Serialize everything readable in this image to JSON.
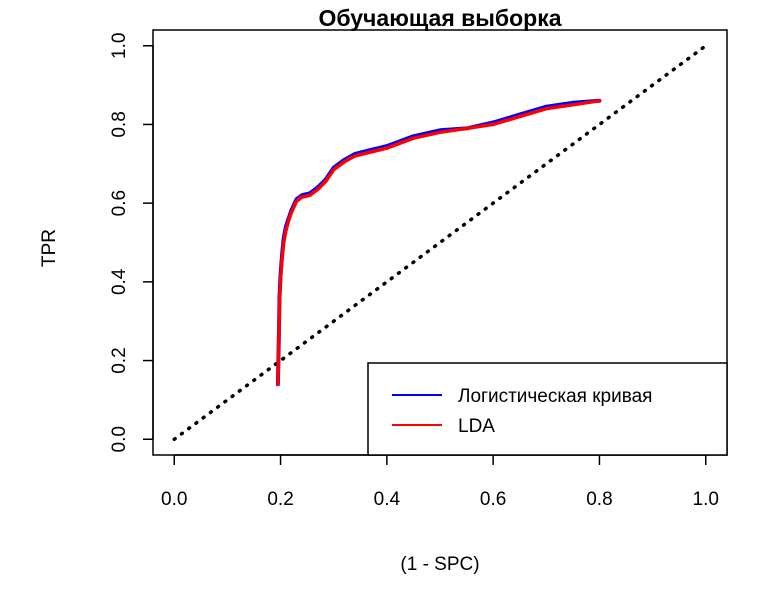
{
  "chart_data": {
    "type": "line",
    "title": "Обучающая выборка",
    "xlabel": "(1 - SPC)",
    "ylabel": "TPR",
    "xlim": [
      -0.04,
      1.04
    ],
    "ylim": [
      -0.04,
      1.04
    ],
    "x_ticks": [
      "0.0",
      "0.2",
      "0.4",
      "0.6",
      "0.8",
      "1.0"
    ],
    "y_ticks": [
      "0.0",
      "0.2",
      "0.4",
      "0.6",
      "0.8",
      "1.0"
    ],
    "grid": false,
    "legend_position": "bottom-right",
    "diagonal": {
      "style": "dotted",
      "color": "#000000",
      "from": [
        0,
        0
      ],
      "to": [
        1,
        1
      ]
    },
    "series": [
      {
        "name": "Логистическая кривая",
        "color": "#0000ff",
        "x": [
          0.195,
          0.196,
          0.197,
          0.198,
          0.2,
          0.203,
          0.206,
          0.21,
          0.215,
          0.22,
          0.23,
          0.24,
          0.255,
          0.27,
          0.285,
          0.3,
          0.32,
          0.34,
          0.37,
          0.4,
          0.45,
          0.5,
          0.55,
          0.6,
          0.65,
          0.7,
          0.75,
          0.8
        ],
        "y": [
          0.14,
          0.2,
          0.28,
          0.36,
          0.42,
          0.47,
          0.51,
          0.54,
          0.56,
          0.58,
          0.61,
          0.62,
          0.625,
          0.64,
          0.66,
          0.69,
          0.71,
          0.725,
          0.735,
          0.745,
          0.77,
          0.785,
          0.79,
          0.805,
          0.825,
          0.845,
          0.855,
          0.86
        ]
      },
      {
        "name": "LDA",
        "color": "#ff0000",
        "x": [
          0.195,
          0.196,
          0.197,
          0.198,
          0.2,
          0.203,
          0.206,
          0.21,
          0.215,
          0.22,
          0.23,
          0.24,
          0.255,
          0.27,
          0.285,
          0.3,
          0.32,
          0.34,
          0.37,
          0.4,
          0.45,
          0.5,
          0.55,
          0.6,
          0.65,
          0.7,
          0.75,
          0.8
        ],
        "y": [
          0.14,
          0.19,
          0.27,
          0.35,
          0.41,
          0.46,
          0.5,
          0.53,
          0.555,
          0.575,
          0.605,
          0.615,
          0.62,
          0.635,
          0.655,
          0.685,
          0.705,
          0.72,
          0.73,
          0.74,
          0.765,
          0.78,
          0.79,
          0.8,
          0.82,
          0.84,
          0.85,
          0.86
        ]
      }
    ]
  }
}
